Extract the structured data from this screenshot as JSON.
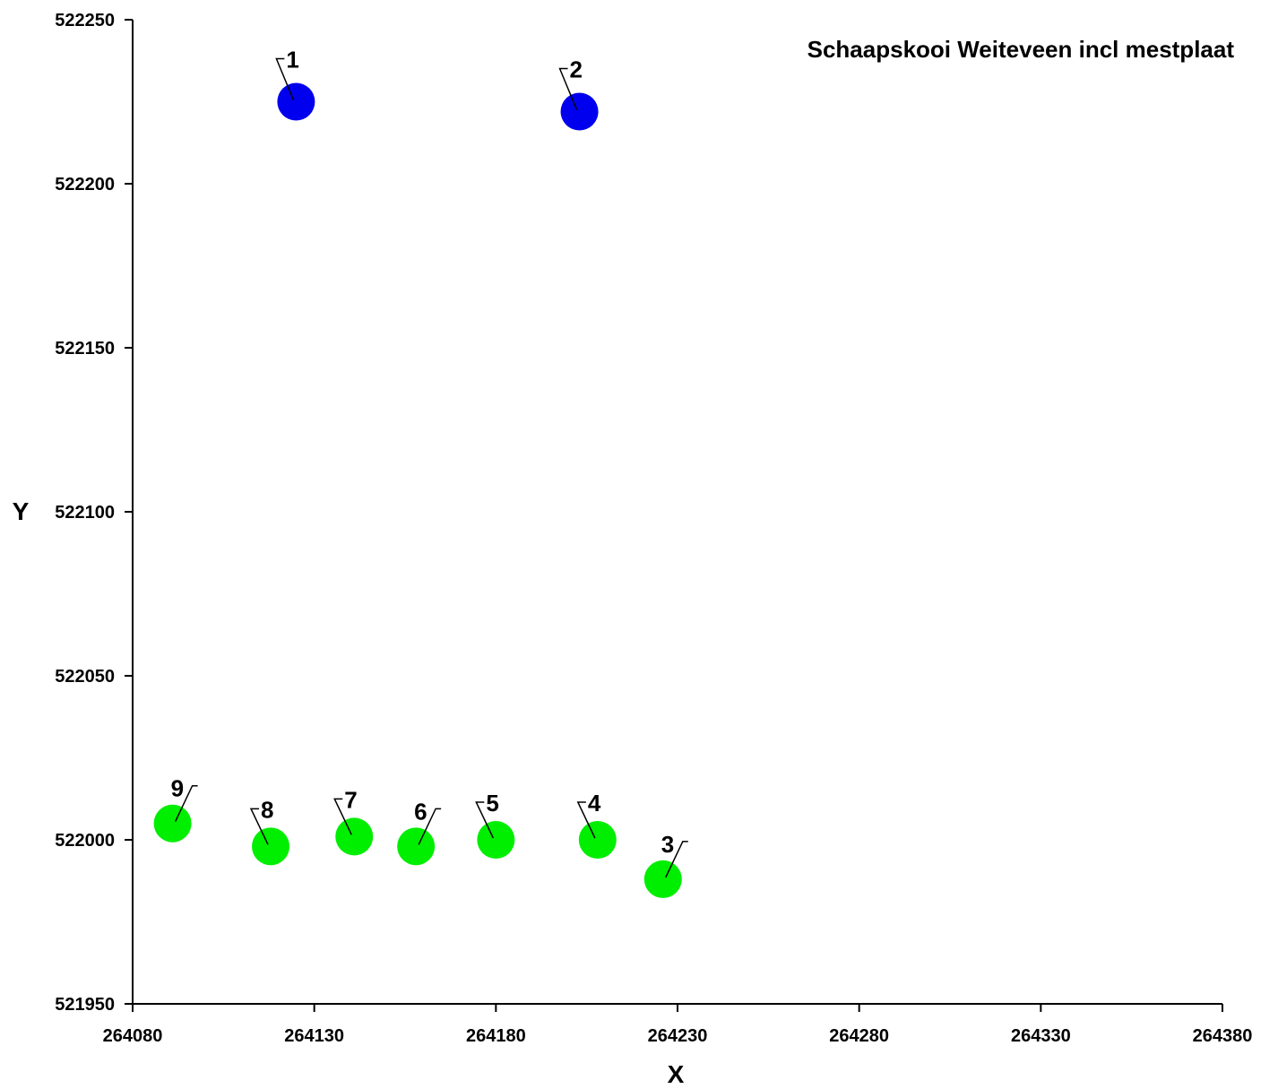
{
  "chart_data": {
    "type": "scatter",
    "title": "Schaapskooi Weiteveen incl mestplaat",
    "xlabel": "X",
    "ylabel": "Y",
    "xlim": [
      264080,
      264380
    ],
    "ylim": [
      521950,
      522250
    ],
    "x_ticks": [
      "264080",
      "264130",
      "264180",
      "264230",
      "264280",
      "264330",
      "264380"
    ],
    "y_ticks": [
      "521950",
      "522000",
      "522050",
      "522100",
      "522150",
      "522200",
      "522250"
    ],
    "grid": false,
    "series": [
      {
        "color": "#0000ee",
        "points": [
          {
            "label": "1",
            "x": 264125,
            "y": 522225
          },
          {
            "label": "2",
            "x": 264203,
            "y": 522222
          }
        ]
      },
      {
        "color": "#00ee00",
        "points": [
          {
            "label": "3",
            "x": 264226,
            "y": 521988
          },
          {
            "label": "4",
            "x": 264208,
            "y": 522000
          },
          {
            "label": "5",
            "x": 264180,
            "y": 522000
          },
          {
            "label": "6",
            "x": 264158,
            "y": 521998
          },
          {
            "label": "7",
            "x": 264141,
            "y": 522001
          },
          {
            "label": "8",
            "x": 264118,
            "y": 521998
          },
          {
            "label": "9",
            "x": 264091,
            "y": 522005
          }
        ]
      }
    ]
  }
}
